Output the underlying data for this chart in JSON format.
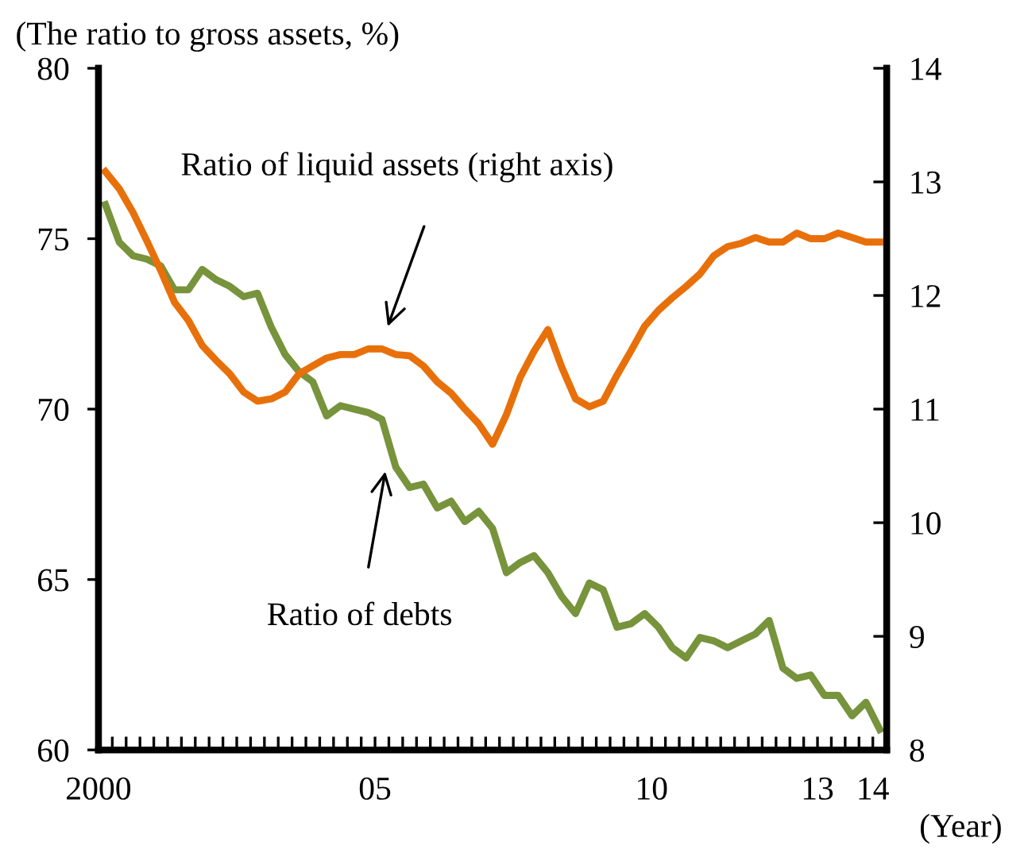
{
  "chart_data": {
    "type": "line",
    "ylabel": "(The ratio to gross assets, %)",
    "xlabel": "(Year)",
    "x": [
      2000.125,
      2000.375,
      2000.625,
      2000.875,
      2001.125,
      2001.375,
      2001.625,
      2001.875,
      2002.125,
      2002.375,
      2002.625,
      2002.875,
      2003.125,
      2003.375,
      2003.625,
      2003.875,
      2004.125,
      2004.375,
      2004.625,
      2004.875,
      2005.125,
      2005.375,
      2005.625,
      2005.875,
      2006.125,
      2006.375,
      2006.625,
      2006.875,
      2007.125,
      2007.375,
      2007.625,
      2007.875,
      2008.125,
      2008.375,
      2008.625,
      2008.875,
      2009.125,
      2009.375,
      2009.625,
      2009.875,
      2010.125,
      2010.375,
      2010.625,
      2010.875,
      2011.125,
      2011.375,
      2011.625,
      2011.875,
      2012.125,
      2012.375,
      2012.625,
      2012.875,
      2013.125,
      2013.375,
      2013.625,
      2013.875,
      2014.125
    ],
    "series": [
      {
        "color": "#77933c",
        "values": [
          76.0,
          74.9,
          74.5,
          74.4,
          74.2,
          73.5,
          73.5,
          74.1,
          73.8,
          73.6,
          73.3,
          73.4,
          72.4,
          71.6,
          71.1,
          70.8,
          69.8,
          70.1,
          70.0,
          69.9,
          69.7,
          68.3,
          67.7,
          67.8,
          67.1,
          67.3,
          66.7,
          67.0,
          66.5,
          65.2,
          65.5,
          65.7,
          65.2,
          64.5,
          64.0,
          64.9,
          64.7,
          63.6,
          63.7,
          64.0,
          63.6,
          63.0,
          62.7,
          63.3,
          63.2,
          63.0,
          63.2,
          63.4,
          63.8,
          62.4,
          62.1,
          62.2,
          61.6,
          61.6,
          61.0,
          61.4,
          60.6
        ]
      },
      {
        "color": "#e8700a",
        "axis": "y2",
        "values": [
          13.09,
          12.94,
          12.73,
          12.48,
          12.22,
          11.94,
          11.78,
          11.56,
          11.43,
          11.31,
          11.15,
          11.07,
          11.09,
          11.15,
          11.31,
          11.38,
          11.45,
          11.48,
          11.48,
          11.53,
          11.53,
          11.48,
          11.47,
          11.38,
          11.24,
          11.14,
          11.0,
          10.87,
          10.69,
          10.95,
          11.28,
          11.51,
          11.7,
          11.37,
          11.09,
          11.02,
          11.07,
          11.3,
          11.51,
          11.73,
          11.87,
          11.98,
          12.08,
          12.19,
          12.35,
          12.43,
          12.46,
          12.51,
          12.47,
          12.47,
          12.55,
          12.5,
          12.5,
          12.55,
          12.51,
          12.47,
          12.47
        ]
      }
    ],
    "xlim": [
      2000,
      2014.25
    ],
    "xticks": [
      {
        "value": 2000,
        "label": "2000"
      },
      {
        "value": 2000.25,
        "label": null
      },
      {
        "value": 2000.5,
        "label": null
      },
      {
        "value": 2000.75,
        "label": null
      },
      {
        "value": 2001,
        "label": null
      },
      {
        "value": 2001.25,
        "label": null
      },
      {
        "value": 2001.5,
        "label": null
      },
      {
        "value": 2001.75,
        "label": null
      },
      {
        "value": 2002,
        "label": null
      },
      {
        "value": 2002.25,
        "label": null
      },
      {
        "value": 2002.5,
        "label": null
      },
      {
        "value": 2002.75,
        "label": null
      },
      {
        "value": 2003,
        "label": null
      },
      {
        "value": 2003.25,
        "label": null
      },
      {
        "value": 2003.5,
        "label": null
      },
      {
        "value": 2003.75,
        "label": null
      },
      {
        "value": 2004,
        "label": null
      },
      {
        "value": 2004.25,
        "label": null
      },
      {
        "value": 2004.5,
        "label": null
      },
      {
        "value": 2004.75,
        "label": null
      },
      {
        "value": 2005,
        "label": "05"
      },
      {
        "value": 2005.25,
        "label": null
      },
      {
        "value": 2005.5,
        "label": null
      },
      {
        "value": 2005.75,
        "label": null
      },
      {
        "value": 2006,
        "label": null
      },
      {
        "value": 2006.25,
        "label": null
      },
      {
        "value": 2006.5,
        "label": null
      },
      {
        "value": 2006.75,
        "label": null
      },
      {
        "value": 2007,
        "label": null
      },
      {
        "value": 2007.25,
        "label": null
      },
      {
        "value": 2007.5,
        "label": null
      },
      {
        "value": 2007.75,
        "label": null
      },
      {
        "value": 2008,
        "label": null
      },
      {
        "value": 2008.25,
        "label": null
      },
      {
        "value": 2008.5,
        "label": null
      },
      {
        "value": 2008.75,
        "label": null
      },
      {
        "value": 2009,
        "label": null
      },
      {
        "value": 2009.25,
        "label": null
      },
      {
        "value": 2009.5,
        "label": null
      },
      {
        "value": 2009.75,
        "label": null
      },
      {
        "value": 2010,
        "label": "10"
      },
      {
        "value": 2010.25,
        "label": null
      },
      {
        "value": 2010.5,
        "label": null
      },
      {
        "value": 2010.75,
        "label": null
      },
      {
        "value": 2011,
        "label": null
      },
      {
        "value": 2011.25,
        "label": null
      },
      {
        "value": 2011.5,
        "label": null
      },
      {
        "value": 2011.75,
        "label": null
      },
      {
        "value": 2012,
        "label": null
      },
      {
        "value": 2012.25,
        "label": null
      },
      {
        "value": 2012.5,
        "label": null
      },
      {
        "value": 2012.75,
        "label": null
      },
      {
        "value": 2013,
        "label": "13"
      },
      {
        "value": 2013.25,
        "label": null
      },
      {
        "value": 2013.5,
        "label": null
      },
      {
        "value": 2013.75,
        "label": null
      },
      {
        "value": 2014,
        "label": "14"
      },
      {
        "value": 2014.25,
        "label": null
      }
    ],
    "ylim": [
      60,
      80
    ],
    "yticks": [
      60,
      65,
      70,
      75,
      80
    ],
    "y2lim": [
      8,
      14
    ],
    "y2ticks": [
      8,
      9,
      10,
      11,
      12,
      13,
      14
    ],
    "annotations": [
      "Ratio of liquid assets (right axis)",
      {
        "text": "Ratio of debts",
        "x": 2005.2,
        "y": 68.3
      }
    ],
    "grid": false,
    "legend": false,
    "marker": "none",
    "line_style": "solid"
  }
}
